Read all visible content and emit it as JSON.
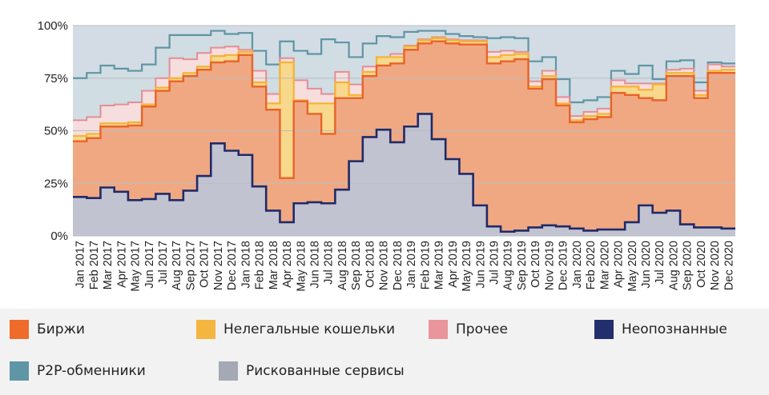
{
  "chart_data": {
    "type": "area",
    "x_labels": [
      "Jan 2017",
      "Feb 2017",
      "Mar 2017",
      "Apr 2017",
      "May 2017",
      "Jun 2017",
      "Jul 2017",
      "Aug 2017",
      "Sep 2017",
      "Oct 2017",
      "Nov 2017",
      "Dec 2017",
      "Jan 2018",
      "Feb 2018",
      "Mar 2018",
      "Apr 2018",
      "May 2018",
      "Jun 2018",
      "Jul 2018",
      "Aug 2018",
      "Sep 2018",
      "Oct 2018",
      "Nov 2018",
      "Dec 2018",
      "Jan 2019",
      "Feb 2019",
      "Mar 2019",
      "Apr 2019",
      "May 2019",
      "Jun 2019",
      "Jul 2019",
      "Aug 2019",
      "Sep 2019",
      "Oct 2019",
      "Nov 2019",
      "Dec 2019",
      "Jan 2020",
      "Feb 2020",
      "Mar 2020",
      "Apr 2020",
      "May 2020",
      "Jun 2020",
      "Jul 2020",
      "Aug 2020",
      "Sep 2020",
      "Oct 2020",
      "Nov 2020",
      "Dec 2020"
    ],
    "y_ticks": [
      "0%",
      "25%",
      "50%",
      "75%",
      "100%"
    ],
    "ylim": [
      0,
      100
    ],
    "stacked": true,
    "cumulative_tops": {
      "risky": [
        18.5,
        18,
        23,
        21,
        17,
        17.5,
        20,
        17,
        21.5,
        28.5,
        44,
        40.5,
        38.5,
        23.5,
        12,
        6.5,
        15.5,
        16,
        15.5,
        22,
        35.5,
        47,
        50.5,
        44.5,
        52,
        58,
        46,
        36.5,
        29.5,
        14.5,
        4.5,
        2,
        2.5,
        4,
        5,
        4.5,
        3.5,
        2.5,
        3,
        3,
        6.5,
        14.5,
        11,
        12,
        5.5,
        4,
        4,
        3.5
      ],
      "exchanges": [
        45,
        46.5,
        52,
        52,
        52.5,
        61.5,
        69,
        73.5,
        76,
        79,
        82.5,
        83,
        86,
        71,
        60,
        27.5,
        64,
        58,
        48.5,
        65.5,
        65.5,
        76,
        81,
        82,
        88.5,
        91.5,
        92.5,
        91.5,
        91,
        91,
        82,
        83,
        84,
        70,
        74.5,
        62,
        54,
        55.5,
        56.5,
        68,
        67,
        65.5,
        64.5,
        76,
        76,
        65.5,
        77.5,
        77.5
      ],
      "illegal": [
        47.5,
        48.5,
        53.5,
        53.5,
        54,
        62.5,
        70.5,
        75,
        77.5,
        80.5,
        85.5,
        86,
        87.5,
        73,
        63,
        82.5,
        64.5,
        63,
        63,
        73,
        67,
        78,
        85,
        85,
        90,
        93,
        94,
        93,
        92.5,
        92.5,
        85,
        86,
        86.5,
        71,
        76,
        63,
        55,
        57,
        58,
        71,
        71,
        69.5,
        72,
        77.5,
        77.5,
        67,
        78.5,
        79
      ],
      "other": [
        55,
        56.5,
        62,
        62.5,
        63.5,
        69,
        75,
        84.5,
        84,
        87,
        89.5,
        90,
        88.5,
        78.5,
        67.5,
        84.5,
        74,
        70,
        67.5,
        78,
        72,
        80.5,
        85,
        86.5,
        90.5,
        93.5,
        94.5,
        93.5,
        93,
        93,
        87.5,
        88,
        87.5,
        73.5,
        78.5,
        66,
        57,
        59,
        60.5,
        74,
        72.5,
        72.5,
        72.5,
        79,
        79.5,
        69,
        81.5,
        80.5
      ],
      "p2p": [
        75,
        77.5,
        81,
        79.5,
        78.5,
        81.5,
        89.5,
        95.5,
        95.5,
        95.5,
        97.5,
        96,
        96.5,
        88,
        81.5,
        92.5,
        88,
        86.5,
        93.5,
        92,
        85,
        91.5,
        95,
        94.5,
        97,
        97.5,
        97.5,
        96,
        95,
        94.5,
        94,
        94.5,
        94,
        83,
        85,
        74.5,
        63.5,
        64.5,
        66,
        78.5,
        77,
        81,
        74.5,
        83,
        83.5,
        73,
        82.5,
        82
      ],
      "total": [
        100,
        100,
        100,
        100,
        100,
        100,
        100,
        100,
        100,
        100,
        100,
        100,
        100,
        100,
        100,
        100,
        100,
        100,
        100,
        100,
        100,
        100,
        100,
        100,
        100,
        100,
        100,
        100,
        100,
        100,
        100,
        100,
        100,
        100,
        100,
        100,
        100,
        100,
        100,
        100,
        100,
        100,
        100,
        100,
        100,
        100,
        100,
        100
      ]
    },
    "colors": {
      "exchanges": "#f0a882",
      "exchanges_line": "#e8632a",
      "illegal": "#f8d88c",
      "illegal_line": "#f5b335",
      "other": "#f6dede",
      "other_line": "#e48e96",
      "unknown": "#d3dce4",
      "unknown_line": "#2a3270",
      "p2p": "#d0dde3",
      "p2p_line": "#5f95a5",
      "risky": "#c2c3d0",
      "risky_line": "#1f2a68"
    }
  },
  "legend": {
    "exchanges": {
      "label": "Биржи",
      "color": "#ef6b2b"
    },
    "illegal": {
      "label": "Нелегальные кошельки",
      "color": "#f5b541"
    },
    "other": {
      "label": "Прочее",
      "color": "#e9959b"
    },
    "unknown": {
      "label": "Неопознанные",
      "color": "#232f6d"
    },
    "p2p": {
      "label": "P2P-обменники",
      "color": "#5e96a6"
    },
    "risky": {
      "label": "Рискованные сервисы",
      "color": "#a5a8b5"
    }
  }
}
